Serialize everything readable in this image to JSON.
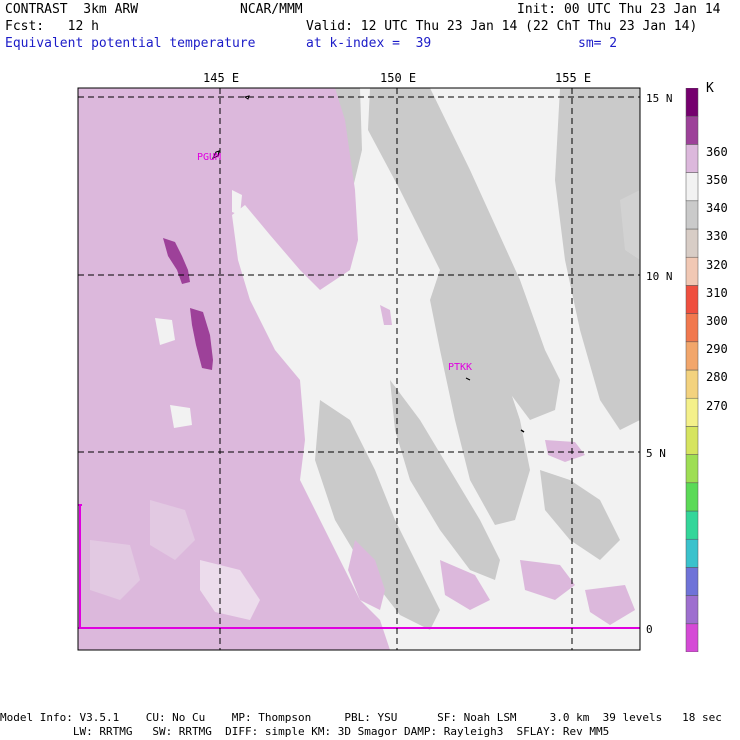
{
  "header": {
    "model": "CONTRAST  3km ARW",
    "forecast": "Fcst:   12 h",
    "field": "Equivalent potential temperature",
    "center": "NCAR/MMM",
    "init": "Init: 00 UTC Thu 23 Jan 14",
    "valid": "Valid: 12 UTC Thu 23 Jan 14 (22 ChT Thu 23 Jan 14)",
    "level": "at k-index =  39",
    "smoothing": "sm= 2"
  },
  "map": {
    "lon_labels": [
      "145 E",
      "150 E",
      "155 E"
    ],
    "lat_labels": [
      "15 N",
      "10 N",
      "5 N",
      "0"
    ],
    "stations": [
      {
        "id": "PGUM",
        "label": "PGUM"
      },
      {
        "id": "PTKK",
        "label": "PTKK"
      }
    ]
  },
  "colorbar": {
    "unit": "K",
    "tick_labels": [
      "360",
      "350",
      "340",
      "330",
      "320",
      "310",
      "300",
      "290",
      "280",
      "270"
    ],
    "colors": [
      "#d54ad6",
      "#9e6fcf",
      "#6f73d8",
      "#3ac2cc",
      "#33d69a",
      "#5bda57",
      "#9ede54",
      "#d6e45f",
      "#f4f08a",
      "#f3d27e",
      "#f2a66b",
      "#f1784e",
      "#ef4f3f",
      "#f1c8b4",
      "#d8cdc6",
      "#cacaca",
      "#f2f2f2",
      "#dcb8dc",
      "#9d4199",
      "#75006e"
    ]
  },
  "footer": {
    "line1": "Model Info: V3.5.1    CU: No Cu    MP: Thompson     PBL: YSU      SF: Noah LSM     3.0 km  39 levels   18 sec",
    "line2": "           LW: RRTMG   SW: RRTMG  DIFF: simple KM: 3D Smagor DAMP: Rayleigh3  SFLAY: Rev MM5"
  }
}
